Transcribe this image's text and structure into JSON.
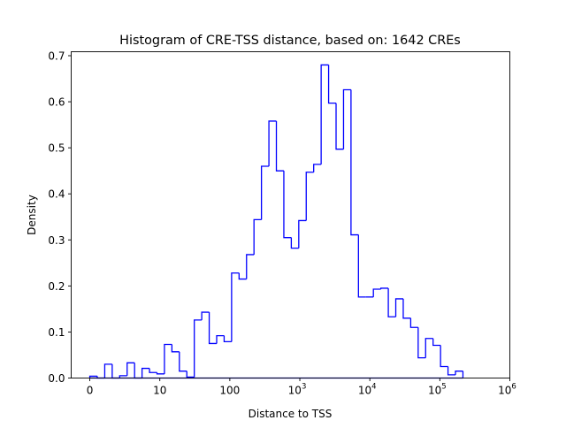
{
  "chart_data": {
    "type": "histogram",
    "title": "Histogram of CRE-TSS distance, based on: 1642 CREs",
    "xlabel": "Distance to TSS",
    "ylabel": "Density",
    "x_scale": "log10(distance+1)",
    "xlim": [
      -0.266,
      6
    ],
    "ylim": [
      0,
      0.7
    ],
    "x_ticks": [
      {
        "value": 0,
        "label": "0",
        "sup": ""
      },
      {
        "value": 1,
        "label": "10",
        "sup": ""
      },
      {
        "value": 2,
        "label": "100",
        "sup": ""
      },
      {
        "value": 3,
        "label": "10",
        "sup": "3"
      },
      {
        "value": 4,
        "label": "10",
        "sup": "4"
      },
      {
        "value": 5,
        "label": "10",
        "sup": "5"
      },
      {
        "value": 6,
        "label": "10",
        "sup": "6"
      }
    ],
    "y_ticks": [
      {
        "value": 0,
        "label": "0.0"
      },
      {
        "value": 0.1,
        "label": "0.1"
      },
      {
        "value": 0.2,
        "label": "0.2"
      },
      {
        "value": 0.3,
        "label": "0.3"
      },
      {
        "value": 0.4,
        "label": "0.4"
      },
      {
        "value": 0.5,
        "label": "0.5"
      },
      {
        "value": 0.6,
        "label": "0.6"
      },
      {
        "value": 0.7,
        "label": "0.7"
      }
    ],
    "bin_start": 0,
    "bin_width": 0.1066,
    "values": [
      0.004,
      0,
      0.03,
      0,
      0.005,
      0.033,
      0,
      0.021,
      0.012,
      0.009,
      0.073,
      0.057,
      0.015,
      0.002,
      0.126,
      0.143,
      0.075,
      0.092,
      0.079,
      0.228,
      0.215,
      0.268,
      0.344,
      0.46,
      0.558,
      0.45,
      0.305,
      0.282,
      0.342,
      0.447,
      0.464,
      0.68,
      0.597,
      0.497,
      0.626,
      0.311,
      0.176,
      0.176,
      0.193,
      0.195,
      0.133,
      0.172,
      0.13,
      0.11,
      0.044,
      0.086,
      0.071,
      0.025,
      0.007,
      0.015
    ],
    "line_color": "#0000ff",
    "grid": false
  }
}
